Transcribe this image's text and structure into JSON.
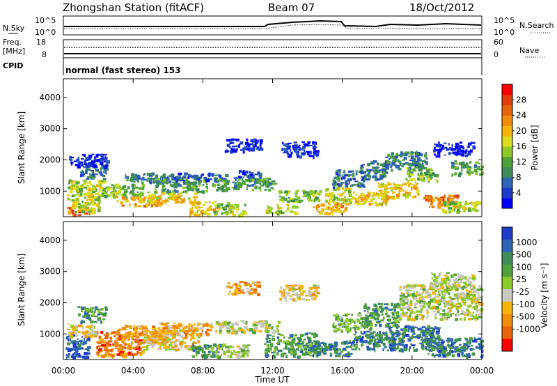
{
  "header": {
    "station": "Zhongshan Station (fitACF)",
    "beam": "Beam 07",
    "date": "18/Oct/2012"
  },
  "sky_panel": {
    "left_label": "N.Sky",
    "left_ticks": [
      "10^5",
      "10^0"
    ],
    "right_label": "N.Search",
    "right_ticks": [
      "10^5",
      "10^0"
    ]
  },
  "freq_panel": {
    "left_label_line1": "Freq.",
    "left_label_line2": "[MHz]",
    "left_ticks": [
      "18",
      "8"
    ],
    "right_label": "Nave",
    "right_ticks": [
      "60",
      "0"
    ]
  },
  "cpid_panel": {
    "label": "CPID",
    "mode_text": "normal (fast stereo) 153"
  },
  "chart_data": [
    {
      "type": "heatmap",
      "name": "power",
      "ylabel": "Slant Range [km]",
      "xlabel": "",
      "ylim": [
        180,
        4600
      ],
      "yticks": [
        "1000",
        "2000",
        "3000",
        "4000"
      ],
      "ytick_values": [
        1000,
        2000,
        3000,
        4000
      ],
      "xlim_hours": [
        0,
        24
      ],
      "xtick_hours": [
        0,
        4,
        8,
        12,
        16,
        20,
        24
      ],
      "colorbar": {
        "label": "Power [dB]",
        "range": [
          0,
          32
        ],
        "ticks": [
          "4",
          "8",
          "12",
          "16",
          "20",
          "24",
          "28"
        ],
        "tick_values": [
          4,
          8,
          12,
          16,
          20,
          24,
          28
        ],
        "colors": [
          "#0000ff",
          "#1e3cc8",
          "#2d64b4",
          "#3c8c5a",
          "#50a03c",
          "#8cc828",
          "#dcdc1e",
          "#f5b40a",
          "#f08c0a",
          "#e6640a",
          "#e13c0a",
          "#ff0000"
        ]
      },
      "blobs": [
        {
          "t": [
            0.1,
            1.6
          ],
          "r": [
            250,
            500
          ],
          "v": 27
        },
        {
          "t": [
            0.1,
            2.0
          ],
          "r": [
            350,
            900
          ],
          "v": 18
        },
        {
          "t": [
            0.2,
            2.3
          ],
          "r": [
            900,
            1400
          ],
          "v": 16
        },
        {
          "t": [
            0.9,
            2.4
          ],
          "r": [
            1400,
            1900
          ],
          "v": 10
        },
        {
          "t": [
            0.3,
            2.5
          ],
          "r": [
            1800,
            2200
          ],
          "v": 5
        },
        {
          "t": [
            2.2,
            4.5
          ],
          "r": [
            800,
            1250
          ],
          "v": 15
        },
        {
          "t": [
            3.0,
            5.6
          ],
          "r": [
            550,
            850
          ],
          "v": 23
        },
        {
          "t": [
            3.5,
            6.2
          ],
          "r": [
            1300,
            1600
          ],
          "v": 9
        },
        {
          "t": [
            4.8,
            7.6
          ],
          "r": [
            650,
            1000
          ],
          "v": 19
        },
        {
          "t": [
            5.2,
            8.2
          ],
          "r": [
            1000,
            1450
          ],
          "v": 13
        },
        {
          "t": [
            6.3,
            9.3
          ],
          "r": [
            1350,
            1600
          ],
          "v": 7
        },
        {
          "t": [
            7.2,
            8.8
          ],
          "r": [
            250,
            700
          ],
          "v": 20
        },
        {
          "t": [
            8.6,
            9.5
          ],
          "r": [
            250,
            650
          ],
          "v": 14
        },
        {
          "t": [
            9.5,
            10.4
          ],
          "r": [
            250,
            600
          ],
          "v": 18
        },
        {
          "t": [
            8.5,
            12.2
          ],
          "r": [
            1050,
            1450
          ],
          "v": 12
        },
        {
          "t": [
            10.0,
            11.4
          ],
          "r": [
            1450,
            1700
          ],
          "v": 6
        },
        {
          "t": [
            9.2,
            11.3
          ],
          "r": [
            2300,
            2700
          ],
          "v": 4
        },
        {
          "t": [
            11.6,
            13.4
          ],
          "r": [
            300,
            600
          ],
          "v": 17
        },
        {
          "t": [
            12.2,
            14.7
          ],
          "r": [
            700,
            1050
          ],
          "v": 14
        },
        {
          "t": [
            12.5,
            14.6
          ],
          "r": [
            2100,
            2600
          ],
          "v": 4
        },
        {
          "t": [
            14.3,
            16.2
          ],
          "r": [
            300,
            650
          ],
          "v": 22
        },
        {
          "t": [
            15.0,
            16.6
          ],
          "r": [
            650,
            1150
          ],
          "v": 17
        },
        {
          "t": [
            15.4,
            17.2
          ],
          "r": [
            1150,
            1700
          ],
          "v": 10
        },
        {
          "t": [
            16.6,
            18.6
          ],
          "r": [
            600,
            1000
          ],
          "v": 21
        },
        {
          "t": [
            17.0,
            18.4
          ],
          "r": [
            1400,
            2000
          ],
          "v": 9
        },
        {
          "t": [
            18.0,
            20.3
          ],
          "r": [
            800,
            1300
          ],
          "v": 19
        },
        {
          "t": [
            18.4,
            20.8
          ],
          "r": [
            1700,
            2300
          ],
          "v": 8
        },
        {
          "t": [
            19.6,
            21.4
          ],
          "r": [
            1350,
            1800
          ],
          "v": 15
        },
        {
          "t": [
            20.6,
            22.6
          ],
          "r": [
            500,
            900
          ],
          "v": 24
        },
        {
          "t": [
            21.6,
            23.8
          ],
          "r": [
            350,
            700
          ],
          "v": 18
        },
        {
          "t": [
            22.2,
            24.0
          ],
          "r": [
            1550,
            2000
          ],
          "v": 11
        },
        {
          "t": [
            21.2,
            23.5
          ],
          "r": [
            2150,
            2600
          ],
          "v": 5
        }
      ]
    },
    {
      "type": "heatmap",
      "name": "velocity",
      "ylabel": "Slant Range [km]",
      "xlabel": "Time UT",
      "ylim": [
        180,
        4600
      ],
      "yticks": [
        "1000",
        "2000",
        "3000",
        "4000"
      ],
      "ytick_values": [
        1000,
        2000,
        3000,
        4000
      ],
      "xlim_hours": [
        0,
        24
      ],
      "xtick_hours": [
        0,
        4,
        8,
        12,
        16,
        20,
        24
      ],
      "xtick_labels": [
        "00:00",
        "04:00",
        "08:00",
        "12:00",
        "16:00",
        "20:00",
        "00:00"
      ],
      "colorbar": {
        "label": "Velocity [m s⁻¹]",
        "ticks": [
          "1000",
          "500",
          "100",
          "25",
          "-25",
          "-100",
          "-500",
          "-1000"
        ],
        "colors": [
          "#1e3cc8",
          "#2d64b4",
          "#3c8c5a",
          "#50a03c",
          "#8cc828",
          "#c8c8c0",
          "#f5b40a",
          "#f08c0a",
          "#e6640a",
          "#ff0000"
        ]
      },
      "blobs": [
        {
          "t": [
            0.1,
            1.4
          ],
          "r": [
            250,
            1000
          ],
          "v": 1
        },
        {
          "t": [
            0.2,
            1.9
          ],
          "r": [
            900,
            1350
          ],
          "v": 6
        },
        {
          "t": [
            0.8,
            2.4
          ],
          "r": [
            1400,
            1900
          ],
          "v": 3
        },
        {
          "t": [
            1.8,
            4.5
          ],
          "r": [
            300,
            1100
          ],
          "v": 8
        },
        {
          "t": [
            3.0,
            6.0
          ],
          "r": [
            700,
            1300
          ],
          "v": 7
        },
        {
          "t": [
            4.5,
            7.8
          ],
          "r": [
            500,
            1150
          ],
          "v": 6
        },
        {
          "t": [
            5.5,
            8.5
          ],
          "r": [
            1000,
            1400
          ],
          "v": 7
        },
        {
          "t": [
            7.3,
            9.0
          ],
          "r": [
            250,
            700
          ],
          "v": 3
        },
        {
          "t": [
            8.6,
            10.6
          ],
          "r": [
            300,
            700
          ],
          "v": 5
        },
        {
          "t": [
            8.7,
            12.3
          ],
          "r": [
            1050,
            1450
          ],
          "v": 5
        },
        {
          "t": [
            9.3,
            11.2
          ],
          "r": [
            2300,
            2700
          ],
          "v": 7
        },
        {
          "t": [
            11.5,
            14.6
          ],
          "r": [
            300,
            1050
          ],
          "v": 3
        },
        {
          "t": [
            12.3,
            14.6
          ],
          "r": [
            2100,
            2600
          ],
          "v": 6
        },
        {
          "t": [
            14.2,
            16.5
          ],
          "r": [
            300,
            800
          ],
          "v": 2
        },
        {
          "t": [
            15.4,
            17.6
          ],
          "r": [
            1100,
            1700
          ],
          "v": 4
        },
        {
          "t": [
            16.5,
            19.0
          ],
          "r": [
            500,
            1100
          ],
          "v": 2
        },
        {
          "t": [
            17.2,
            19.2
          ],
          "r": [
            1300,
            2000
          ],
          "v": 3
        },
        {
          "t": [
            18.6,
            21.6
          ],
          "r": [
            500,
            1300
          ],
          "v": 2
        },
        {
          "t": [
            19.2,
            24.0
          ],
          "r": [
            1500,
            2600
          ],
          "v": 5
        },
        {
          "t": [
            20.8,
            24.0
          ],
          "r": [
            300,
            900
          ],
          "v": 2
        },
        {
          "t": [
            21.0,
            23.5
          ],
          "r": [
            2500,
            3000
          ],
          "v": 5
        }
      ]
    }
  ]
}
